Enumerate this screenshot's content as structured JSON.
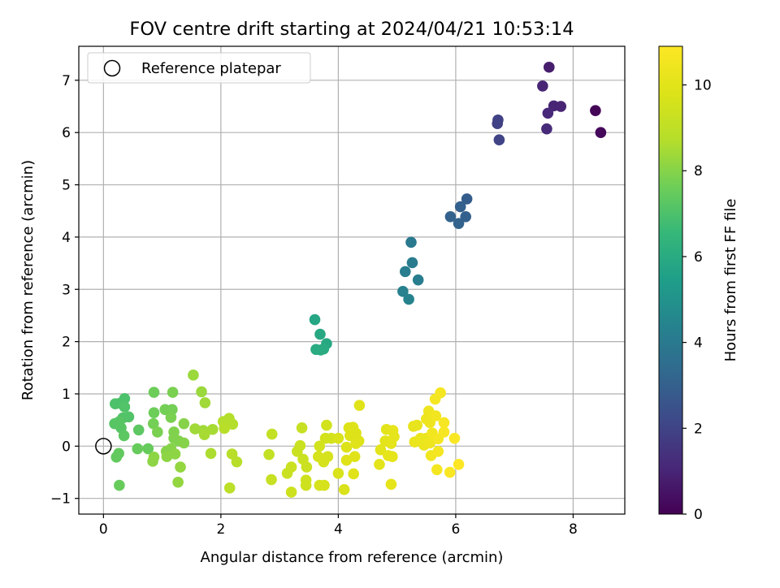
{
  "chart_data": {
    "type": "scatter",
    "title": "FOV centre drift starting at 2024/04/21 10:53:14",
    "xlabel": "Angular distance from reference (arcmin)",
    "ylabel": "Rotation from reference (arcmin)",
    "xlim": [
      -0.42,
      8.88
    ],
    "ylim": [
      -1.3,
      7.65
    ],
    "xticks": [
      "0",
      "2",
      "4",
      "6",
      "8"
    ],
    "yticks": [
      "−1",
      "0",
      "1",
      "2",
      "3",
      "4",
      "5",
      "6",
      "7"
    ],
    "grid": true,
    "legend": {
      "placement": "top-left",
      "label": "Reference platepar"
    },
    "reference_point": {
      "x": 0,
      "y": 0
    },
    "colorbar": {
      "label": "Hours from first FF file",
      "range": [
        0,
        10.9
      ],
      "ticks": [
        "0",
        "2",
        "4",
        "6",
        "8",
        "10"
      ],
      "colormap": "viridis"
    },
    "points": [
      {
        "x": 8.38,
        "y": 6.42,
        "c": 0.1
      },
      {
        "x": 8.47,
        "y": 6.0,
        "c": 0.2
      },
      {
        "x": 7.59,
        "y": 7.25,
        "c": 0.8
      },
      {
        "x": 7.48,
        "y": 6.89,
        "c": 1.0
      },
      {
        "x": 7.67,
        "y": 6.51,
        "c": 1.0
      },
      {
        "x": 7.79,
        "y": 6.5,
        "c": 1.0
      },
      {
        "x": 7.57,
        "y": 6.37,
        "c": 1.1
      },
      {
        "x": 7.55,
        "y": 6.07,
        "c": 1.2
      },
      {
        "x": 6.72,
        "y": 6.24,
        "c": 1.9
      },
      {
        "x": 6.71,
        "y": 6.17,
        "c": 1.9
      },
      {
        "x": 6.74,
        "y": 5.86,
        "c": 2.0
      },
      {
        "x": 6.19,
        "y": 4.73,
        "c": 2.9
      },
      {
        "x": 6.08,
        "y": 4.58,
        "c": 3.0
      },
      {
        "x": 6.17,
        "y": 4.39,
        "c": 3.0
      },
      {
        "x": 5.91,
        "y": 4.39,
        "c": 3.1
      },
      {
        "x": 6.05,
        "y": 4.26,
        "c": 3.1
      },
      {
        "x": 5.24,
        "y": 3.9,
        "c": 4.0
      },
      {
        "x": 5.26,
        "y": 3.51,
        "c": 4.1
      },
      {
        "x": 5.14,
        "y": 3.34,
        "c": 4.2
      },
      {
        "x": 5.36,
        "y": 3.18,
        "c": 4.2
      },
      {
        "x": 5.1,
        "y": 2.96,
        "c": 4.3
      },
      {
        "x": 5.2,
        "y": 2.81,
        "c": 4.4
      },
      {
        "x": 3.6,
        "y": 2.42,
        "c": 5.8
      },
      {
        "x": 3.69,
        "y": 2.14,
        "c": 5.9
      },
      {
        "x": 3.8,
        "y": 1.96,
        "c": 5.9
      },
      {
        "x": 3.62,
        "y": 1.85,
        "c": 6.0
      },
      {
        "x": 3.75,
        "y": 1.86,
        "c": 6.0
      },
      {
        "x": 3.7,
        "y": 1.84,
        "c": 6.0
      },
      {
        "x": 0.28,
        "y": 0.82,
        "c": 7.0
      },
      {
        "x": 0.2,
        "y": 0.81,
        "c": 7.0
      },
      {
        "x": 0.36,
        "y": 0.91,
        "c": 7.0
      },
      {
        "x": 0.36,
        "y": 0.75,
        "c": 7.1
      },
      {
        "x": 0.43,
        "y": 0.56,
        "c": 7.1
      },
      {
        "x": 0.33,
        "y": 0.54,
        "c": 7.1
      },
      {
        "x": 0.27,
        "y": 0.47,
        "c": 7.2
      },
      {
        "x": 0.19,
        "y": 0.43,
        "c": 7.2
      },
      {
        "x": 0.3,
        "y": 0.35,
        "c": 7.2
      },
      {
        "x": 0.35,
        "y": 0.2,
        "c": 7.3
      },
      {
        "x": 0.6,
        "y": 0.31,
        "c": 7.3
      },
      {
        "x": 0.26,
        "y": -0.14,
        "c": 7.4
      },
      {
        "x": 0.22,
        "y": -0.21,
        "c": 7.4
      },
      {
        "x": 0.58,
        "y": -0.05,
        "c": 7.5
      },
      {
        "x": 0.76,
        "y": -0.05,
        "c": 7.5
      },
      {
        "x": 0.27,
        "y": -0.75,
        "c": 7.5
      },
      {
        "x": 0.86,
        "y": 1.03,
        "c": 7.6
      },
      {
        "x": 0.86,
        "y": 0.64,
        "c": 7.6
      },
      {
        "x": 1.05,
        "y": 0.7,
        "c": 7.7
      },
      {
        "x": 1.17,
        "y": 0.7,
        "c": 7.7
      },
      {
        "x": 0.85,
        "y": 0.43,
        "c": 7.7
      },
      {
        "x": 1.15,
        "y": 0.55,
        "c": 7.8
      },
      {
        "x": 1.18,
        "y": 1.03,
        "c": 7.8
      },
      {
        "x": 0.92,
        "y": 0.27,
        "c": 7.8
      },
      {
        "x": 1.2,
        "y": 0.27,
        "c": 7.9
      },
      {
        "x": 1.2,
        "y": 0.15,
        "c": 7.9
      },
      {
        "x": 1.28,
        "y": 0.1,
        "c": 7.9
      },
      {
        "x": 1.37,
        "y": 0.43,
        "c": 8.0
      },
      {
        "x": 1.37,
        "y": 0.06,
        "c": 8.0
      },
      {
        "x": 1.15,
        "y": -0.05,
        "c": 8.0
      },
      {
        "x": 1.07,
        "y": -0.1,
        "c": 8.0
      },
      {
        "x": 1.22,
        "y": -0.15,
        "c": 8.1
      },
      {
        "x": 1.08,
        "y": -0.2,
        "c": 8.1
      },
      {
        "x": 0.86,
        "y": -0.21,
        "c": 8.1
      },
      {
        "x": 0.84,
        "y": -0.29,
        "c": 8.1
      },
      {
        "x": 1.31,
        "y": -0.4,
        "c": 8.2
      },
      {
        "x": 1.27,
        "y": -0.69,
        "c": 8.2
      },
      {
        "x": 1.53,
        "y": 1.36,
        "c": 8.3
      },
      {
        "x": 1.67,
        "y": 1.04,
        "c": 8.3
      },
      {
        "x": 1.73,
        "y": 0.83,
        "c": 8.4
      },
      {
        "x": 1.56,
        "y": 0.33,
        "c": 8.4
      },
      {
        "x": 1.7,
        "y": 0.3,
        "c": 8.4
      },
      {
        "x": 1.86,
        "y": 0.32,
        "c": 8.5
      },
      {
        "x": 1.72,
        "y": 0.22,
        "c": 8.5
      },
      {
        "x": 1.83,
        "y": -0.14,
        "c": 8.6
      },
      {
        "x": 2.04,
        "y": 0.47,
        "c": 8.7
      },
      {
        "x": 2.14,
        "y": 0.53,
        "c": 8.7
      },
      {
        "x": 2.2,
        "y": 0.42,
        "c": 8.7
      },
      {
        "x": 2.06,
        "y": 0.34,
        "c": 8.8
      },
      {
        "x": 2.19,
        "y": -0.15,
        "c": 8.8
      },
      {
        "x": 2.27,
        "y": -0.3,
        "c": 8.8
      },
      {
        "x": 2.15,
        "y": -0.8,
        "c": 8.9
      },
      {
        "x": 2.87,
        "y": 0.23,
        "c": 9.1
      },
      {
        "x": 2.82,
        "y": -0.16,
        "c": 9.1
      },
      {
        "x": 2.86,
        "y": -0.64,
        "c": 9.2
      },
      {
        "x": 3.38,
        "y": 0.35,
        "c": 9.2
      },
      {
        "x": 3.3,
        "y": -0.1,
        "c": 9.3
      },
      {
        "x": 3.35,
        "y": 0.01,
        "c": 9.3
      },
      {
        "x": 3.4,
        "y": -0.25,
        "c": 9.3
      },
      {
        "x": 3.46,
        "y": -0.4,
        "c": 9.3
      },
      {
        "x": 3.2,
        "y": -0.4,
        "c": 9.3
      },
      {
        "x": 3.13,
        "y": -0.52,
        "c": 9.3
      },
      {
        "x": 3.45,
        "y": -0.65,
        "c": 9.4
      },
      {
        "x": 3.45,
        "y": -0.75,
        "c": 9.4
      },
      {
        "x": 3.2,
        "y": -0.88,
        "c": 9.4
      },
      {
        "x": 3.8,
        "y": 0.4,
        "c": 9.5
      },
      {
        "x": 3.78,
        "y": 0.15,
        "c": 9.5
      },
      {
        "x": 3.88,
        "y": 0.15,
        "c": 9.5
      },
      {
        "x": 3.68,
        "y": 0.0,
        "c": 9.5
      },
      {
        "x": 3.66,
        "y": -0.2,
        "c": 9.6
      },
      {
        "x": 3.82,
        "y": -0.2,
        "c": 9.6
      },
      {
        "x": 3.75,
        "y": -0.3,
        "c": 9.6
      },
      {
        "x": 3.68,
        "y": -0.75,
        "c": 9.6
      },
      {
        "x": 3.76,
        "y": -0.75,
        "c": 9.6
      },
      {
        "x": 4.0,
        "y": 0.15,
        "c": 9.7
      },
      {
        "x": 4.0,
        "y": -0.52,
        "c": 9.7
      },
      {
        "x": 4.1,
        "y": -0.83,
        "c": 9.7
      },
      {
        "x": 4.18,
        "y": 0.35,
        "c": 9.8
      },
      {
        "x": 4.25,
        "y": 0.36,
        "c": 9.8
      },
      {
        "x": 4.2,
        "y": 0.2,
        "c": 9.8
      },
      {
        "x": 4.3,
        "y": 0.25,
        "c": 9.8
      },
      {
        "x": 4.35,
        "y": 0.1,
        "c": 9.8
      },
      {
        "x": 4.14,
        "y": -0.02,
        "c": 9.8
      },
      {
        "x": 4.3,
        "y": 0.05,
        "c": 9.9
      },
      {
        "x": 4.28,
        "y": -0.2,
        "c": 9.9
      },
      {
        "x": 4.14,
        "y": -0.27,
        "c": 9.9
      },
      {
        "x": 4.26,
        "y": -0.53,
        "c": 9.9
      },
      {
        "x": 4.36,
        "y": 0.78,
        "c": 9.9
      },
      {
        "x": 4.7,
        "y": -0.35,
        "c": 10.0
      },
      {
        "x": 4.72,
        "y": -0.07,
        "c": 10.0
      },
      {
        "x": 4.8,
        "y": 0.1,
        "c": 10.0
      },
      {
        "x": 4.82,
        "y": 0.32,
        "c": 10.0
      },
      {
        "x": 4.85,
        "y": -0.18,
        "c": 10.1
      },
      {
        "x": 4.9,
        "y": 0.05,
        "c": 10.1
      },
      {
        "x": 4.93,
        "y": 0.3,
        "c": 10.1
      },
      {
        "x": 4.95,
        "y": 0.18,
        "c": 10.1
      },
      {
        "x": 4.92,
        "y": -0.2,
        "c": 10.1
      },
      {
        "x": 4.9,
        "y": -0.73,
        "c": 10.1
      },
      {
        "x": 5.28,
        "y": 0.38,
        "c": 10.2
      },
      {
        "x": 5.34,
        "y": 0.4,
        "c": 10.2
      },
      {
        "x": 5.3,
        "y": 0.08,
        "c": 10.3
      },
      {
        "x": 5.4,
        "y": 0.15,
        "c": 10.3
      },
      {
        "x": 5.46,
        "y": 0.02,
        "c": 10.3
      },
      {
        "x": 5.5,
        "y": 0.15,
        "c": 10.3
      },
      {
        "x": 5.56,
        "y": 0.06,
        "c": 10.4
      },
      {
        "x": 5.5,
        "y": 0.52,
        "c": 10.4
      },
      {
        "x": 5.54,
        "y": 0.67,
        "c": 10.4
      },
      {
        "x": 5.56,
        "y": 0.45,
        "c": 10.4
      },
      {
        "x": 5.58,
        "y": -0.18,
        "c": 10.5
      },
      {
        "x": 5.6,
        "y": 0.25,
        "c": 10.5
      },
      {
        "x": 5.66,
        "y": 0.58,
        "c": 10.5
      },
      {
        "x": 5.65,
        "y": 0.9,
        "c": 10.6
      },
      {
        "x": 5.74,
        "y": 1.02,
        "c": 10.6
      },
      {
        "x": 5.7,
        "y": 0.14,
        "c": 10.6
      },
      {
        "x": 5.7,
        "y": -0.1,
        "c": 10.6
      },
      {
        "x": 5.68,
        "y": -0.45,
        "c": 10.6
      },
      {
        "x": 5.8,
        "y": 0.45,
        "c": 10.7
      },
      {
        "x": 5.8,
        "y": 0.27,
        "c": 10.7
      },
      {
        "x": 5.98,
        "y": 0.15,
        "c": 10.8
      },
      {
        "x": 5.9,
        "y": -0.5,
        "c": 10.8
      },
      {
        "x": 6.05,
        "y": -0.35,
        "c": 10.9
      }
    ]
  }
}
